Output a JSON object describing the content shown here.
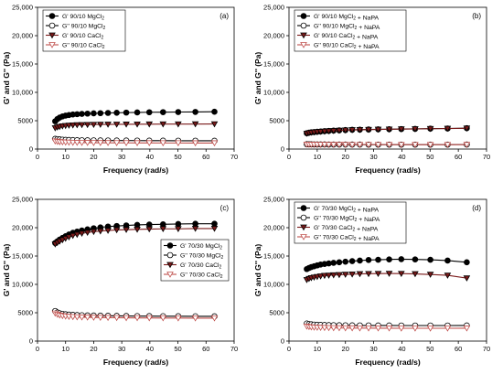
{
  "chart_data": [
    {
      "panel": "(a)",
      "type": "line",
      "xlabel": "Frequency (rad/s)",
      "ylabel": "G' and G'' (Pa)",
      "xlim": [
        0,
        70
      ],
      "ylim": [
        0,
        25000
      ],
      "xticks": [
        "0",
        "10",
        "20",
        "30",
        "40",
        "50",
        "60",
        "70"
      ],
      "yticks": [
        "0",
        "5000",
        "10,000",
        "15,000",
        "20,000",
        "25,000"
      ],
      "legend_position": "top-left",
      "x": [
        6.3,
        7.1,
        7.9,
        8.9,
        10,
        11.2,
        12.6,
        14.1,
        15.8,
        17.8,
        20,
        22.4,
        25.1,
        28.2,
        31.6,
        35.5,
        39.8,
        44.7,
        50.1,
        56.2,
        63
      ],
      "series": [
        {
          "name": "G' 90/10 MgCl2",
          "marker": "filled-circle",
          "color": "#000000",
          "values": [
            4900,
            5300,
            5550,
            5750,
            5900,
            6000,
            6100,
            6150,
            6200,
            6250,
            6300,
            6330,
            6370,
            6400,
            6430,
            6460,
            6490,
            6510,
            6530,
            6550,
            6580
          ]
        },
        {
          "name": "G'' 90/10 MgCl2",
          "marker": "open-circle",
          "color": "#000000",
          "values": [
            1800,
            1750,
            1700,
            1650,
            1620,
            1600,
            1580,
            1560,
            1550,
            1540,
            1530,
            1520,
            1510,
            1500,
            1500,
            1490,
            1480,
            1480,
            1470,
            1470,
            1460
          ]
        },
        {
          "name": "G' 90/10 CaCl2",
          "marker": "filled-triangle-down",
          "color": "#7a1a1a",
          "values": [
            3700,
            3850,
            3950,
            4050,
            4120,
            4180,
            4220,
            4250,
            4280,
            4300,
            4320,
            4340,
            4350,
            4360,
            4370,
            4380,
            4390,
            4400,
            4400,
            4410,
            4420
          ]
        },
        {
          "name": "G'' 90/10 CaCl2",
          "marker": "open-triangle-down",
          "color": "#c0504d",
          "values": [
            1400,
            1320,
            1260,
            1220,
            1190,
            1170,
            1150,
            1140,
            1130,
            1120,
            1110,
            1100,
            1100,
            1090,
            1090,
            1080,
            1080,
            1070,
            1070,
            1060,
            1060
          ]
        }
      ]
    },
    {
      "panel": "(b)",
      "type": "line",
      "xlabel": "Frequency (rad/s)",
      "ylabel": "G' and G'' (Pa)",
      "xlim": [
        0,
        70
      ],
      "ylim": [
        0,
        25000
      ],
      "xticks": [
        "0",
        "10",
        "20",
        "30",
        "40",
        "50",
        "60",
        "70"
      ],
      "yticks": [
        "0",
        "5000",
        "10,000",
        "15,000",
        "20,000",
        "25,000"
      ],
      "legend_position": "top-left",
      "x": [
        6.3,
        7.1,
        7.9,
        8.9,
        10,
        11.2,
        12.6,
        14.1,
        15.8,
        17.8,
        20,
        22.4,
        25.1,
        28.2,
        31.6,
        35.5,
        39.8,
        44.7,
        50.1,
        56.2,
        63
      ],
      "series": [
        {
          "name": "G' 90/10 MgCl2 + NaPA",
          "marker": "filled-circle",
          "color": "#000000",
          "values": [
            2800,
            2900,
            2950,
            3000,
            3050,
            3100,
            3150,
            3200,
            3250,
            3300,
            3350,
            3400,
            3420,
            3450,
            3480,
            3500,
            3530,
            3560,
            3600,
            3630,
            3680
          ]
        },
        {
          "name": "G'' 90/10 MgCl2 + NaPA",
          "marker": "open-circle",
          "color": "#000000",
          "values": [
            850,
            840,
            830,
            820,
            820,
            810,
            810,
            800,
            800,
            800,
            790,
            790,
            790,
            780,
            780,
            780,
            780,
            780,
            780,
            780,
            790
          ]
        },
        {
          "name": "G' 90/10 CaCl2 + NaPA",
          "marker": "filled-triangle-down",
          "color": "#7a1a1a",
          "values": [
            2750,
            2850,
            2920,
            2980,
            3030,
            3080,
            3130,
            3180,
            3230,
            3280,
            3330,
            3380,
            3400,
            3430,
            3460,
            3490,
            3520,
            3550,
            3590,
            3620,
            3660
          ]
        },
        {
          "name": "G'' 90/10 CaCl2 + NaPA",
          "marker": "open-triangle-down",
          "color": "#c0504d",
          "values": [
            820,
            810,
            800,
            800,
            790,
            790,
            790,
            780,
            780,
            780,
            780,
            770,
            770,
            770,
            770,
            770,
            770,
            770,
            770,
            770,
            780
          ]
        }
      ]
    },
    {
      "panel": "(c)",
      "type": "line",
      "xlabel": "Frequency (rad/s)",
      "ylabel": "G' and G'' (Pa)",
      "xlim": [
        0,
        70
      ],
      "ylim": [
        0,
        25000
      ],
      "xticks": [
        "0",
        "10",
        "20",
        "30",
        "40",
        "50",
        "60",
        "70"
      ],
      "yticks": [
        "0",
        "5000",
        "10,000",
        "15,000",
        "20,000",
        "25,000"
      ],
      "legend_position": "right",
      "x": [
        6.3,
        7.1,
        7.9,
        8.9,
        10,
        11.2,
        12.6,
        14.1,
        15.8,
        17.8,
        20,
        22.4,
        25.1,
        28.2,
        31.6,
        35.5,
        39.8,
        44.7,
        50.1,
        56.2,
        63
      ],
      "series": [
        {
          "name": "G' 70/30 MgCl2",
          "marker": "filled-circle",
          "color": "#000000",
          "values": [
            17300,
            17600,
            17900,
            18200,
            18500,
            18800,
            19100,
            19300,
            19500,
            19700,
            19900,
            20050,
            20200,
            20300,
            20400,
            20500,
            20550,
            20600,
            20650,
            20700,
            20700
          ]
        },
        {
          "name": "G'' 70/30 MgCl2",
          "marker": "open-circle",
          "color": "#000000",
          "values": [
            5300,
            5050,
            4900,
            4800,
            4720,
            4660,
            4620,
            4580,
            4550,
            4520,
            4500,
            4480,
            4460,
            4440,
            4420,
            4410,
            4400,
            4390,
            4380,
            4370,
            4360
          ]
        },
        {
          "name": "G' 70/30 CaCl2",
          "marker": "filled-triangle-down",
          "color": "#7a1a1a",
          "values": [
            17100,
            17350,
            17600,
            17850,
            18100,
            18350,
            18600,
            18800,
            19000,
            19150,
            19300,
            19400,
            19500,
            19600,
            19650,
            19700,
            19750,
            19800,
            19800,
            19850,
            19850
          ]
        },
        {
          "name": "G'' 70/30 CaCl2",
          "marker": "open-triangle-down",
          "color": "#c0504d",
          "values": [
            4900,
            4700,
            4550,
            4450,
            4380,
            4320,
            4280,
            4240,
            4210,
            4190,
            4170,
            4150,
            4130,
            4120,
            4100,
            4090,
            4080,
            4070,
            4060,
            4050,
            4050
          ]
        }
      ]
    },
    {
      "panel": "(d)",
      "type": "line",
      "xlabel": "Frequency (rad/s)",
      "ylabel": "G' and G'' (Pa)",
      "xlim": [
        0,
        70
      ],
      "ylim": [
        0,
        25000
      ],
      "xticks": [
        "0",
        "10",
        "20",
        "30",
        "40",
        "50",
        "60",
        "70"
      ],
      "yticks": [
        "0",
        "5000",
        "10,000",
        "15,000",
        "20,000",
        "25,000"
      ],
      "legend_position": "top-left",
      "x": [
        6.3,
        7.1,
        7.9,
        8.9,
        10,
        11.2,
        12.6,
        14.1,
        15.8,
        17.8,
        20,
        22.4,
        25.1,
        28.2,
        31.6,
        35.5,
        39.8,
        44.7,
        50.1,
        56.2,
        63
      ],
      "series": [
        {
          "name": "G' 70/30 MgCl2 + NaPA",
          "marker": "filled-circle",
          "color": "#000000",
          "values": [
            12700,
            12900,
            13050,
            13200,
            13350,
            13500,
            13600,
            13700,
            13800,
            13900,
            14000,
            14100,
            14200,
            14300,
            14350,
            14400,
            14450,
            14400,
            14350,
            14200,
            13900
          ]
        },
        {
          "name": "G'' 70/30 MgCl2 + NaPA",
          "marker": "open-circle",
          "color": "#000000",
          "values": [
            3100,
            3000,
            2950,
            2900,
            2870,
            2850,
            2830,
            2810,
            2800,
            2790,
            2780,
            2770,
            2760,
            2760,
            2750,
            2750,
            2740,
            2740,
            2740,
            2740,
            2750
          ]
        },
        {
          "name": "G' 70/30 CaCl2 + NaPA",
          "marker": "filled-triangle-down",
          "color": "#7a1a1a",
          "values": [
            10800,
            11000,
            11150,
            11250,
            11350,
            11450,
            11550,
            11600,
            11650,
            11700,
            11750,
            11800,
            11850,
            11880,
            11900,
            11920,
            11900,
            11850,
            11750,
            11600,
            11100
          ]
        },
        {
          "name": "G'' 70/30 CaCl2 + NaPA",
          "marker": "open-triangle-down",
          "color": "#c0504d",
          "values": [
            2600,
            2520,
            2460,
            2420,
            2390,
            2370,
            2350,
            2330,
            2320,
            2310,
            2300,
            2290,
            2280,
            2280,
            2270,
            2270,
            2260,
            2260,
            2260,
            2260,
            2270
          ]
        }
      ]
    }
  ]
}
